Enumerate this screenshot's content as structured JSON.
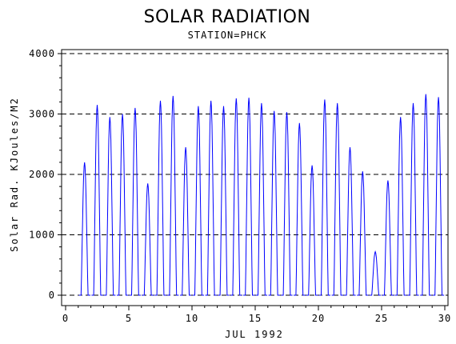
{
  "chart_data": {
    "type": "line",
    "title": "SOLAR RADIATION",
    "subtitle": "STATION=PHCK",
    "xlabel": "JUL 1992",
    "ylabel": "Solar Rad. KJoules/M2",
    "xlim": [
      0,
      30
    ],
    "ylim": [
      0,
      4000
    ],
    "x_ticks": [
      "0",
      "5",
      "10",
      "15",
      "20",
      "25",
      "30"
    ],
    "y_ticks": [
      "0",
      "1000",
      "2000",
      "3000",
      "4000"
    ],
    "grid": "horizontal dashed",
    "series_color": "#0000ff",
    "daily_peaks": [
      {
        "day": 1.5,
        "peak": 2200
      },
      {
        "day": 2.5,
        "peak": 3150
      },
      {
        "day": 3.5,
        "peak": 2950
      },
      {
        "day": 4.5,
        "peak": 3000
      },
      {
        "day": 5.5,
        "peak": 3100
      },
      {
        "day": 6.5,
        "peak": 1850
      },
      {
        "day": 7.5,
        "peak": 3220
      },
      {
        "day": 8.5,
        "peak": 3300
      },
      {
        "day": 9.5,
        "peak": 2450
      },
      {
        "day": 10.5,
        "peak": 3130
      },
      {
        "day": 11.5,
        "peak": 3220
      },
      {
        "day": 12.5,
        "peak": 3130
      },
      {
        "day": 13.5,
        "peak": 3260
      },
      {
        "day": 14.5,
        "peak": 3270
      },
      {
        "day": 15.5,
        "peak": 3180
      },
      {
        "day": 16.5,
        "peak": 3050
      },
      {
        "day": 17.5,
        "peak": 3030
      },
      {
        "day": 18.5,
        "peak": 2850
      },
      {
        "day": 19.5,
        "peak": 2150
      },
      {
        "day": 20.5,
        "peak": 3240
      },
      {
        "day": 21.5,
        "peak": 3180
      },
      {
        "day": 22.5,
        "peak": 2450
      },
      {
        "day": 23.5,
        "peak": 2050
      },
      {
        "day": 24.5,
        "peak": 720
      },
      {
        "day": 25.5,
        "peak": 1900
      },
      {
        "day": 26.5,
        "peak": 2950
      },
      {
        "day": 27.5,
        "peak": 3180
      },
      {
        "day": 28.5,
        "peak": 3330
      },
      {
        "day": 29.5,
        "peak": 3280
      }
    ]
  }
}
